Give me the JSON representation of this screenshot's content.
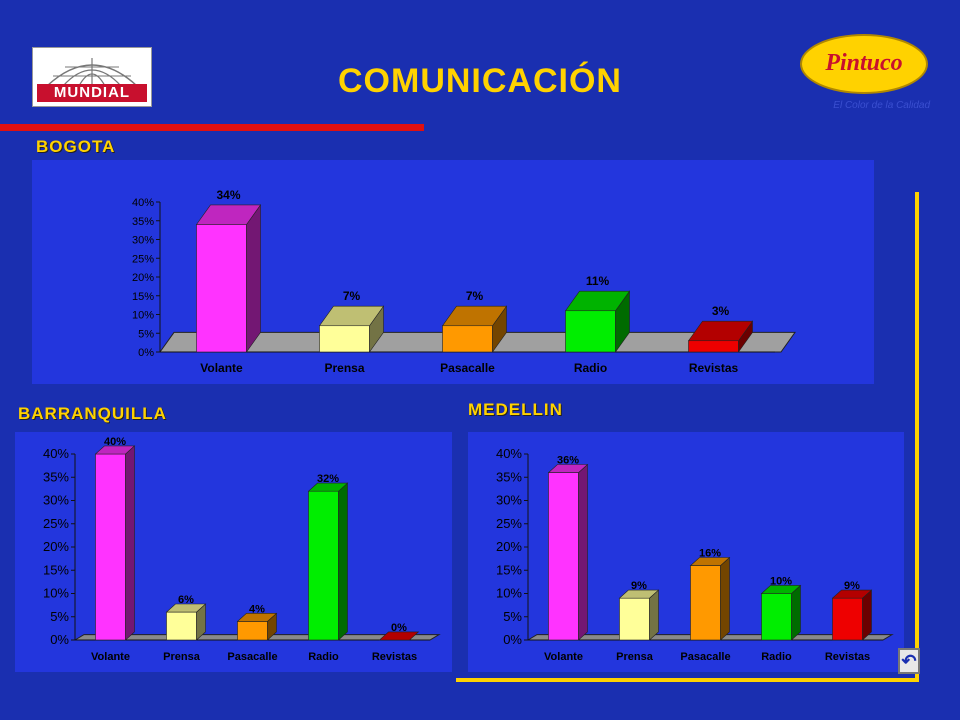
{
  "page": {
    "title": "COMUNICACIÓN",
    "logo_left": "MUNDIAL",
    "logo_right": "Pintuco",
    "tagline": "El Color de la Calidad",
    "return_icon": "return-arrow-icon"
  },
  "colors": {
    "background": "#1a2fb0",
    "panel": "#2336dd",
    "title": "#ffd200",
    "series": [
      "#ff33ff",
      "#ffff99",
      "#ff9900",
      "#00ee00",
      "#ee0000"
    ]
  },
  "chart_data": [
    {
      "type": "bar",
      "title": "BOGOTA",
      "categories": [
        "Volante",
        "Prensa",
        "Pasacalle",
        "Radio",
        "Revistas"
      ],
      "values": [
        34,
        7,
        7,
        11,
        3
      ],
      "value_labels": [
        "34%",
        "7%",
        "7%",
        "11%",
        "3%"
      ],
      "yticks": [
        "0%",
        "5%",
        "10%",
        "15%",
        "20%",
        "25%",
        "30%",
        "35%",
        "40%"
      ],
      "ylim": [
        0,
        40
      ],
      "grid": false,
      "legend": false
    },
    {
      "type": "bar",
      "title": "BARRANQUILLA",
      "categories": [
        "Volante",
        "Prensa",
        "Pasacalle",
        "Radio",
        "Revistas"
      ],
      "values": [
        40,
        6,
        4,
        32,
        0
      ],
      "value_labels": [
        "40%",
        "6%",
        "4%",
        "32%",
        "0%"
      ],
      "yticks": [
        "0%",
        "5%",
        "10%",
        "15%",
        "20%",
        "25%",
        "30%",
        "35%",
        "40%"
      ],
      "ylim": [
        0,
        40
      ],
      "grid": false,
      "legend": false
    },
    {
      "type": "bar",
      "title": "MEDELLIN",
      "categories": [
        "Volante",
        "Prensa",
        "Pasacalle",
        "Radio",
        "Revistas"
      ],
      "values": [
        36,
        9,
        16,
        10,
        9
      ],
      "value_labels": [
        "36%",
        "9%",
        "16%",
        "10%",
        "9%"
      ],
      "yticks": [
        "0%",
        "5%",
        "10%",
        "15%",
        "20%",
        "25%",
        "30%",
        "35%",
        "40%"
      ],
      "ylim": [
        0,
        40
      ],
      "grid": false,
      "legend": false
    }
  ]
}
